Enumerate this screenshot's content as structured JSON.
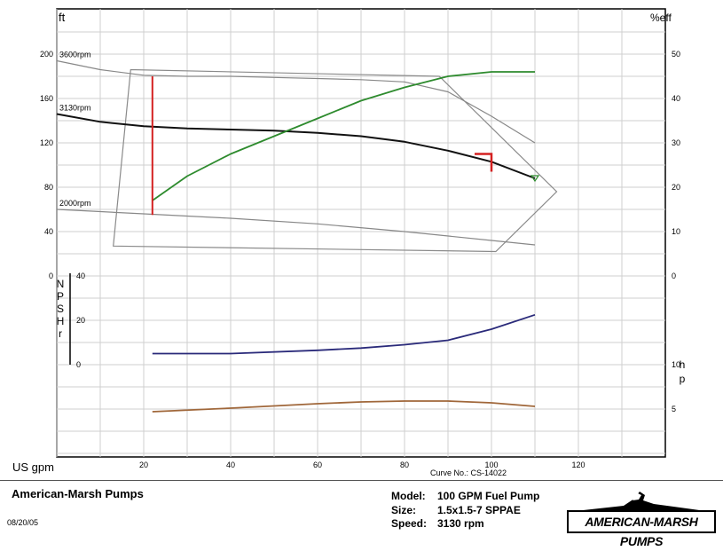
{
  "chart_data": {
    "type": "line",
    "x_label": "US gpm",
    "x_ticks": [
      20,
      40,
      60,
      80,
      100,
      120
    ],
    "xlim": [
      0,
      140
    ],
    "head": {
      "ylabel": "ft",
      "ticks_left": [
        0,
        40,
        80,
        120,
        160,
        200
      ],
      "ylim": [
        0,
        200
      ],
      "series": [
        {
          "name": "3600rpm",
          "x": [
            0,
            10,
            20,
            30,
            40,
            50,
            60,
            70,
            80,
            90,
            100,
            110
          ],
          "y": [
            194,
            186,
            181,
            180,
            180,
            179,
            178,
            177,
            175,
            166,
            144,
            120
          ]
        },
        {
          "name": "3130rpm",
          "x": [
            0,
            10,
            20,
            30,
            40,
            50,
            60,
            70,
            80,
            90,
            100,
            110
          ],
          "y": [
            146,
            139,
            135,
            133,
            132,
            131,
            129,
            126,
            121,
            113,
            103,
            88
          ]
        },
        {
          "name": "2000rpm",
          "x": [
            0,
            20,
            40,
            60,
            80,
            100,
            110
          ],
          "y": [
            60,
            56,
            52,
            47,
            40,
            32,
            28
          ]
        }
      ],
      "operating_region": {
        "x": [
          13,
          17,
          88,
          115,
          101
        ],
        "y": [
          27,
          186,
          180,
          76,
          22
        ]
      },
      "min_flow_x": 22,
      "min_flow_y": [
        55,
        180
      ]
    },
    "efficiency": {
      "ylabel": "%eff",
      "ticks_right": [
        0,
        10,
        20,
        30,
        40,
        50
      ],
      "ylim": [
        0,
        50
      ],
      "series": [
        {
          "name": "efficiency",
          "x": [
            22,
            30,
            40,
            50,
            60,
            70,
            80,
            90,
            100,
            110
          ],
          "y": [
            17,
            22.5,
            27.5,
            31.5,
            35.5,
            39.5,
            42.5,
            45,
            46,
            46
          ]
        }
      ]
    },
    "npshr": {
      "ylabel": "NPSHr",
      "ticks": [
        0,
        20,
        40
      ],
      "ylim": [
        0,
        40
      ],
      "series": [
        {
          "name": "NPSHr",
          "x": [
            22,
            40,
            60,
            70,
            80,
            90,
            100,
            110
          ],
          "y": [
            5,
            5,
            6.5,
            7.5,
            9,
            11,
            16,
            22.5
          ]
        }
      ]
    },
    "hp": {
      "ylabel": "hp",
      "ticks": [
        5,
        10
      ],
      "ylim": [
        0,
        10
      ],
      "series": [
        {
          "name": "hp",
          "x": [
            22,
            40,
            60,
            70,
            80,
            90,
            100,
            110
          ],
          "y": [
            4.7,
            5.1,
            5.6,
            5.8,
            5.9,
            5.9,
            5.7,
            5.3
          ]
        }
      ]
    },
    "bep_marker": {
      "x": 100,
      "y": 98
    }
  },
  "footer": {
    "curve_no": "Curve No.: CS-14022",
    "company": "American-Marsh Pumps",
    "date": "08/20/05",
    "model_label": "Model:",
    "model_value": "100 GPM Fuel Pump",
    "size_label": "Size:",
    "size_value": "1.5x1.5-7 SPPAE",
    "speed_label": "Speed:",
    "speed_value": "3130 rpm",
    "logo_text": "AMERICAN-MARSH PUMPS"
  },
  "colors": {
    "head_3130": "#111111",
    "head_other": "#888888",
    "efficiency": "#2e8b2e",
    "npshr": "#2a2a7a",
    "hp": "#a0673a",
    "marker": "#d42020"
  }
}
